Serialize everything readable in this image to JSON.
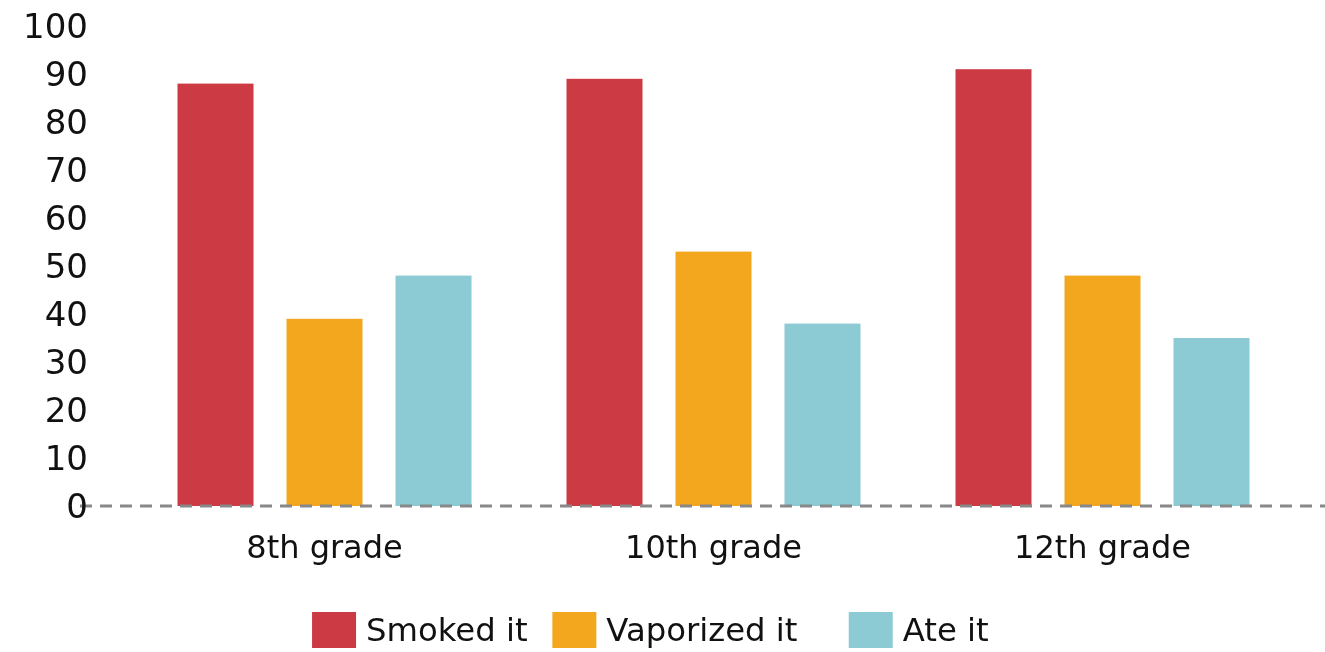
{
  "chart_data": {
    "type": "bar",
    "categories": [
      "8th grade",
      "10th grade",
      "12th grade"
    ],
    "series": [
      {
        "name": "Smoked it",
        "color": "#cc3a44",
        "values": [
          88,
          89,
          91
        ]
      },
      {
        "name": "Vaporized it",
        "color": "#f2a71f",
        "values": [
          39,
          53,
          48
        ]
      },
      {
        "name": "Ate it",
        "color": "#8ccad4",
        "values": [
          48,
          38,
          35
        ]
      }
    ],
    "ylim": [
      0,
      100
    ],
    "yticks": [
      0,
      10,
      20,
      30,
      40,
      50,
      60,
      70,
      80,
      90,
      100
    ],
    "grid": false,
    "legend": "bottom"
  }
}
